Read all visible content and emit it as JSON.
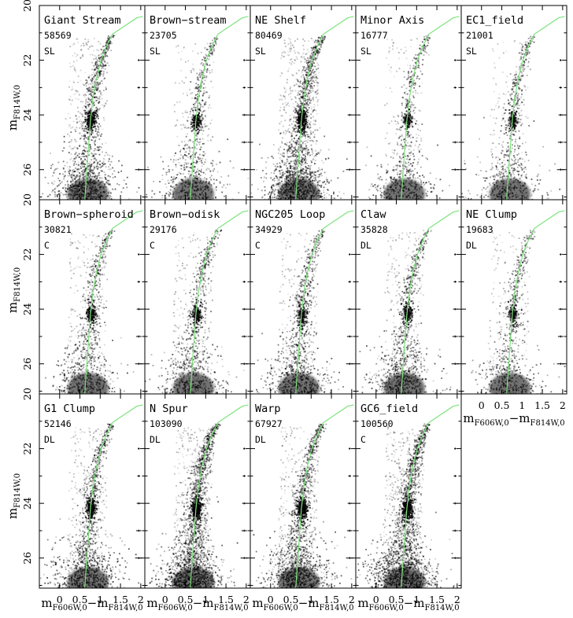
{
  "chart_data": {
    "type": "scatter",
    "layout": "small-multiples color-magnitude diagrams (Hess diagrams)",
    "xlabel": {
      "main": "m",
      "sub1": "F606W,0",
      "mid": "−m",
      "sub2": "F814W,0"
    },
    "ylabel": {
      "main": "m",
      "sub": "F814W,0"
    },
    "xlim": [
      -0.5,
      2.1
    ],
    "ylim": [
      27.1,
      20.0
    ],
    "xticks": [
      "0",
      "0.5",
      "1",
      "1.5",
      "2"
    ],
    "yticks": [
      "20",
      "22",
      "24",
      "26"
    ],
    "grid": false,
    "isochrone_color": "#7de37d",
    "isochrone": [
      {
        "x": 0.62,
        "y": 27.1
      },
      {
        "x": 0.68,
        "y": 25.8
      },
      {
        "x": 0.72,
        "y": 25.0
      },
      {
        "x": 0.76,
        "y": 24.2
      },
      {
        "x": 0.82,
        "y": 23.4
      },
      {
        "x": 0.9,
        "y": 22.7
      },
      {
        "x": 1.02,
        "y": 22.0
      },
      {
        "x": 1.15,
        "y": 21.5
      },
      {
        "x": 1.3,
        "y": 21.05
      },
      {
        "x": 1.6,
        "y": 20.75
      },
      {
        "x": 1.9,
        "y": 20.45
      },
      {
        "x": 2.05,
        "y": 20.4
      }
    ],
    "panels": [
      {
        "name": "Giant Stream",
        "count": "58569",
        "code": "SL"
      },
      {
        "name": "Brown−stream",
        "count": "23705",
        "code": "SL"
      },
      {
        "name": "NE Shelf",
        "count": "80469",
        "code": "SL"
      },
      {
        "name": "Minor Axis",
        "count": "16777",
        "code": "SL"
      },
      {
        "name": "EC1_field",
        "count": "21001",
        "code": "SL"
      },
      {
        "name": "Brown−spheroid",
        "count": "30821",
        "code": "C"
      },
      {
        "name": "Brown−odisk",
        "count": "29176",
        "code": "C"
      },
      {
        "name": "NGC205 Loop",
        "count": "34929",
        "code": "C"
      },
      {
        "name": "Claw",
        "count": "35828",
        "code": "DL"
      },
      {
        "name": "NE Clump",
        "count": "19683",
        "code": "DL"
      },
      {
        "name": "G1 Clump",
        "count": "52146",
        "code": "DL"
      },
      {
        "name": "N Spur",
        "count": "103090",
        "code": "DL"
      },
      {
        "name": "Warp",
        "count": "67927",
        "code": "DL"
      },
      {
        "name": "GC6_field",
        "count": "100560",
        "code": "C"
      }
    ]
  }
}
